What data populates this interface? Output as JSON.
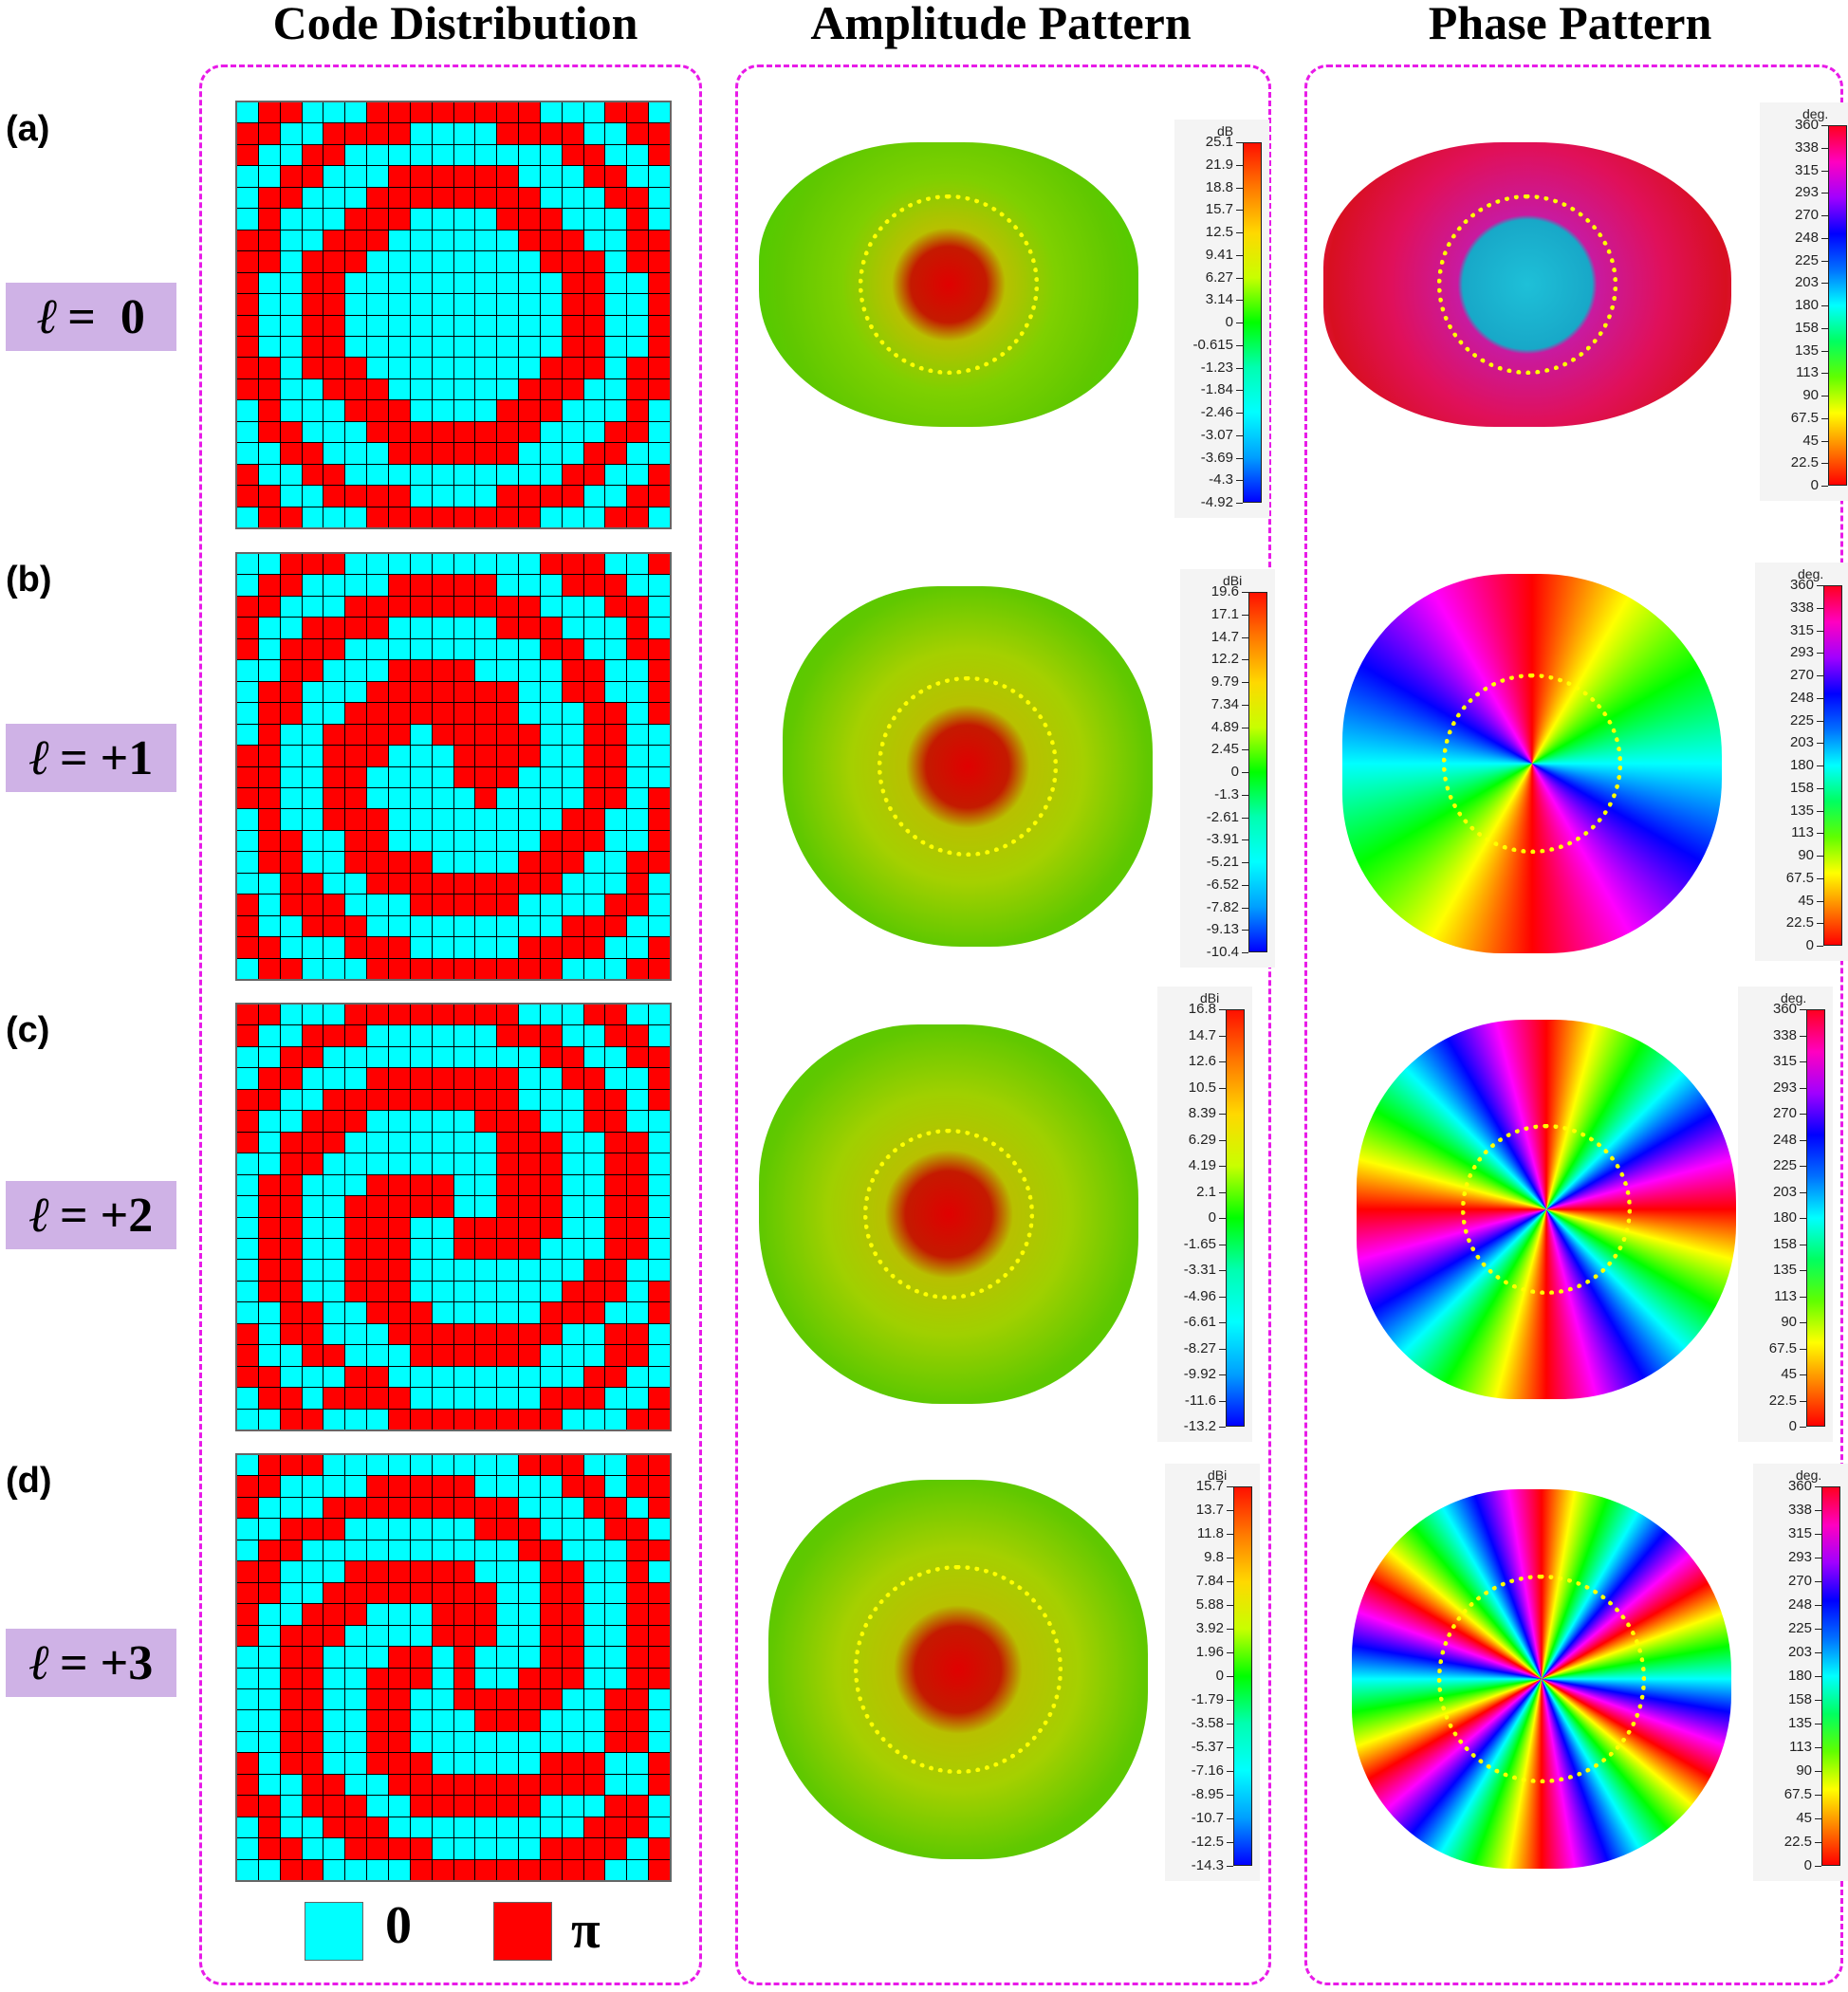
{
  "column_titles": [
    "Code Distribution",
    "Amplitude Pattern",
    "Phase Pattern"
  ],
  "legend": {
    "zero_label": "0",
    "pi_label": "π",
    "zero_color": "#00ffff",
    "pi_color": "#ff0000"
  },
  "colors": {
    "panel_border": "#e81be8",
    "badge_bg": "#cfb2e6",
    "ring": "#ffff00"
  },
  "rows": [
    {
      "label": "(a)",
      "ell_symbol": "ℓ",
      "ell_value": "=  0",
      "grid": [
        "01100011111111000110",
        "11001111000011110011",
        "10011000000000011001",
        "00110001111110001100",
        "01100011111111000110",
        "01000111000011100010",
        "11001110000001110011",
        "11011100000000111011",
        "10011000000000011001",
        "10011000000000011001",
        "10011000000000011001",
        "10011000000000011001",
        "11011100000000111011",
        "11001110000001110011",
        "01000111000011100010",
        "01100011111111000110",
        "00110001111110001100",
        "10011000000000011001",
        "11001111000011110011",
        "01100011111111000110"
      ],
      "amplitude_colorbar": {
        "unit": "dB",
        "ticks": [
          "25.1",
          "21.9",
          "18.8",
          "15.7",
          "12.5",
          "9.41",
          "6.27",
          "3.14",
          "0",
          "-0.615",
          "-1.23",
          "-1.84",
          "-2.46",
          "-3.07",
          "-3.69",
          "-4.3",
          "-4.92"
        ]
      },
      "phase_colorbar": {
        "unit": "deg.",
        "ticks": [
          "360",
          "338",
          "315",
          "293",
          "270",
          "248",
          "225",
          "203",
          "180",
          "158",
          "135",
          "113",
          "90",
          "67.5",
          "45",
          "22.5",
          "0"
        ]
      }
    },
    {
      "label": "(b)",
      "ell_symbol": "ℓ",
      "ell_value": "= +1",
      "grid": [
        "00111000000000111001",
        "01100001111100011100",
        "11000111111111000110",
        "10011110000011100010",
        "10111000000000110011",
        "00110001111000011001",
        "01100011111110011001",
        "01100111111110001101",
        "01001111011111001100",
        "11001110001111001100",
        "11001100001110001100",
        "11001100000100001101",
        "01001110000000011001",
        "01100110000000111001",
        "01100111100001110011",
        "00110011111111100010",
        "10111000111110000110",
        "10011100000000011100",
        "11000111000001111001",
        "01100011111111100011"
      ],
      "amplitude_colorbar": {
        "unit": "dBi",
        "ticks": [
          "19.6",
          "17.1",
          "14.7",
          "12.2",
          "9.79",
          "7.34",
          "4.89",
          "2.45",
          "0",
          "-1.3",
          "-2.61",
          "-3.91",
          "-5.21",
          "-6.52",
          "-7.82",
          "-9.13",
          "-10.4"
        ]
      },
      "phase_colorbar": {
        "unit": "deg.",
        "ticks": [
          "360",
          "338",
          "315",
          "293",
          "270",
          "248",
          "225",
          "203",
          "180",
          "158",
          "135",
          "113",
          "90",
          "67.5",
          "45",
          "22.5",
          "0"
        ]
      }
    },
    {
      "label": "(c)",
      "ell_symbol": "ℓ",
      "ell_value": "= +2",
      "grid": [
        "11000111111110001100",
        "10011100000011100110",
        "00110000000000110011",
        "01100011111110011001",
        "11001111111110001101",
        "10011100000111001100",
        "10111000000011100110",
        "00110000000011100110",
        "01100011110011100110",
        "01100111110011100110",
        "01100111001111100110",
        "01100111001111000110",
        "01100111000000001100",
        "01100111000000011101",
        "00110011100000111001",
        "10110001111111100110",
        "10011000111111000110",
        "11000110000000001100",
        "01101111000000111001",
        "00110001111111100011"
      ],
      "amplitude_colorbar": {
        "unit": "dBi",
        "ticks": [
          "16.8",
          "14.7",
          "12.6",
          "10.5",
          "8.39",
          "6.29",
          "4.19",
          "2.1",
          "0",
          "-1.65",
          "-3.31",
          "-4.96",
          "-6.61",
          "-8.27",
          "-9.92",
          "-11.6",
          "-13.2"
        ]
      },
      "phase_colorbar": {
        "unit": "deg.",
        "ticks": [
          "360",
          "338",
          "315",
          "293",
          "270",
          "248",
          "225",
          "203",
          "180",
          "158",
          "135",
          "113",
          "90",
          "67.5",
          "45",
          "22.5",
          "0"
        ]
      }
    },
    {
      "label": "(d)",
      "ell_symbol": "ℓ",
      "ell_value": "= +3",
      "grid": [
        "01110000000001110011",
        "11000011111000011011",
        "10001111111110001101",
        "00111000000111000110",
        "01100000000001100011",
        "11000111111000110010",
        "11001111111100110011",
        "10011100011100110011",
        "10111000011100110011",
        "00110001101000110011",
        "00110011101001110011",
        "00110011001111100110",
        "00110011000111000110",
        "00110011000000000110",
        "10110011100000111001",
        "10011001111111111001",
        "11011100111111000110",
        "01001110000000001110",
        "01100111100000111101",
        "00110000111111111001"
      ],
      "amplitude_colorbar": {
        "unit": "dBi",
        "ticks": [
          "15.7",
          "13.7",
          "11.8",
          "9.8",
          "7.84",
          "5.88",
          "3.92",
          "1.96",
          "0",
          "-1.79",
          "-3.58",
          "-5.37",
          "-7.16",
          "-8.95",
          "-10.7",
          "-12.5",
          "-14.3"
        ]
      },
      "phase_colorbar": {
        "unit": "deg.",
        "ticks": [
          "360",
          "338",
          "315",
          "293",
          "270",
          "248",
          "225",
          "203",
          "180",
          "158",
          "135",
          "113",
          "90",
          "67.5",
          "45",
          "22.5",
          "0"
        ]
      }
    }
  ]
}
